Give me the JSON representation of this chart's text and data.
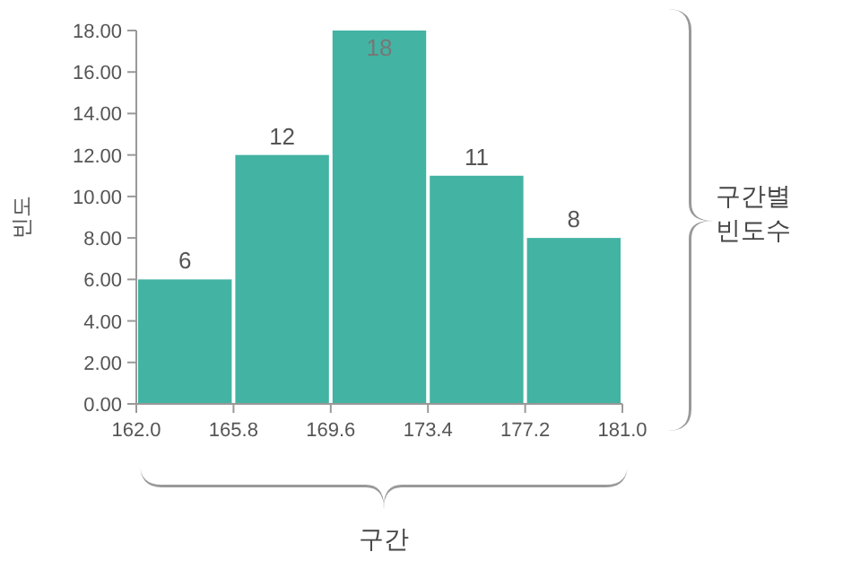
{
  "chart_data": {
    "type": "histogram",
    "ylabel": "빈도",
    "xlabel": "구간",
    "annotations": [
      "구간별 빈도수"
    ],
    "bins": [
      162.0,
      165.8,
      169.6,
      173.4,
      177.2,
      181.0
    ],
    "values": [
      6,
      12,
      18,
      11,
      8
    ],
    "color": "#43b3a3",
    "data_labels": true,
    "grid": false,
    "xlim": [
      162,
      181
    ],
    "xticks": [
      {
        "value": 162,
        "label": "162.0"
      },
      {
        "value": 165.8,
        "label": "165.8"
      },
      {
        "value": 169.6,
        "label": "169.6"
      },
      {
        "value": 173.4,
        "label": "173.4"
      },
      {
        "value": 177.2,
        "label": "177.2"
      },
      {
        "value": 181,
        "label": "181.0"
      }
    ],
    "ylim": [
      0,
      18
    ],
    "yticks": [
      {
        "value": 0,
        "label": "0.00"
      },
      {
        "value": 2,
        "label": "2.00"
      },
      {
        "value": 4,
        "label": "4.00"
      },
      {
        "value": 6,
        "label": "6.00"
      },
      {
        "value": 8,
        "label": "8.00"
      },
      {
        "value": 10,
        "label": "10.00"
      },
      {
        "value": 12,
        "label": "12.00"
      },
      {
        "value": 14,
        "label": "14.00"
      },
      {
        "value": 16,
        "label": "16.00"
      },
      {
        "value": 18,
        "label": "18.00"
      }
    ]
  }
}
